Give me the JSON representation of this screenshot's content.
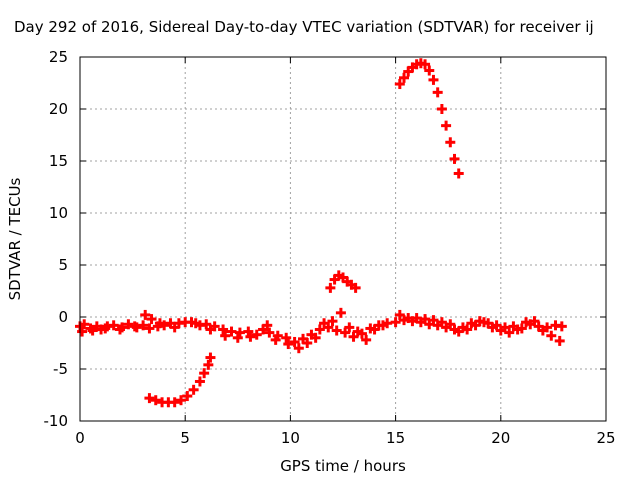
{
  "chart_data": {
    "type": "scatter",
    "title": "Day 292 of 2016, Sidereal Day-to-day VTEC variation (SDTVAR) for receiver ij",
    "xlabel": "GPS time / hours",
    "ylabel": "SDTVAR / TECUs",
    "xlim": [
      0,
      25
    ],
    "ylim": [
      -10,
      25
    ],
    "x_ticks": [
      0,
      5,
      10,
      15,
      20,
      25
    ],
    "y_ticks": [
      -10,
      -5,
      0,
      5,
      10,
      15,
      20,
      25
    ],
    "grid": true,
    "marker": "plus",
    "colors": {
      "series": "#ff0000",
      "grid": "#a0a0a0",
      "axis": "#000000"
    },
    "series": [
      {
        "values": [
          {
            "x": 0.0,
            "y": -0.9
          },
          {
            "x": 0.2,
            "y": -0.7
          },
          {
            "x": 0.5,
            "y": -1.1
          },
          {
            "x": 0.8,
            "y": -0.9
          },
          {
            "x": 1.0,
            "y": -1.2
          },
          {
            "x": 1.3,
            "y": -0.9
          },
          {
            "x": 1.6,
            "y": -0.8
          },
          {
            "x": 2.0,
            "y": -1.0
          },
          {
            "x": 2.3,
            "y": -0.7
          },
          {
            "x": 2.6,
            "y": -0.9
          },
          {
            "x": 3.0,
            "y": -0.8
          },
          {
            "x": 3.3,
            "y": -1.1
          },
          {
            "x": 3.7,
            "y": -0.9
          },
          {
            "x": 4.0,
            "y": -0.8
          },
          {
            "x": 4.3,
            "y": -0.6
          },
          {
            "x": 4.7,
            "y": -0.6
          },
          {
            "x": 5.0,
            "y": -0.5
          },
          {
            "x": 5.3,
            "y": -0.5
          },
          {
            "x": 5.7,
            "y": -0.8
          },
          {
            "x": 6.0,
            "y": -0.7
          },
          {
            "x": 6.4,
            "y": -0.9
          },
          {
            "x": 6.8,
            "y": -1.2
          },
          {
            "x": 7.2,
            "y": -1.4
          },
          {
            "x": 7.6,
            "y": -1.5
          },
          {
            "x": 8.0,
            "y": -1.4
          },
          {
            "x": 8.4,
            "y": -1.7
          },
          {
            "x": 8.7,
            "y": -1.2
          },
          {
            "x": 9.0,
            "y": -1.5
          },
          {
            "x": 9.4,
            "y": -1.8
          },
          {
            "x": 9.8,
            "y": -2.0
          },
          {
            "x": 10.2,
            "y": -2.4
          },
          {
            "x": 10.6,
            "y": -2.1
          },
          {
            "x": 11.0,
            "y": -1.7
          },
          {
            "x": 11.4,
            "y": -1.2
          },
          {
            "x": 11.8,
            "y": -1.0
          },
          {
            "x": 12.2,
            "y": -1.3
          },
          {
            "x": 12.6,
            "y": -1.5
          },
          {
            "x": 13.0,
            "y": -1.9
          },
          {
            "x": 13.4,
            "y": -1.6
          },
          {
            "x": 13.8,
            "y": -1.1
          },
          {
            "x": 14.2,
            "y": -0.8
          },
          {
            "x": 14.6,
            "y": -0.6
          },
          {
            "x": 15.0,
            "y": -0.5
          },
          {
            "x": 15.4,
            "y": -0.3
          },
          {
            "x": 15.8,
            "y": -0.4
          },
          {
            "x": 16.2,
            "y": -0.5
          },
          {
            "x": 16.6,
            "y": -0.7
          },
          {
            "x": 17.0,
            "y": -0.8
          },
          {
            "x": 17.4,
            "y": -1.0
          },
          {
            "x": 17.8,
            "y": -1.2
          },
          {
            "x": 18.2,
            "y": -1.0
          },
          {
            "x": 18.6,
            "y": -0.6
          },
          {
            "x": 19.0,
            "y": -0.4
          },
          {
            "x": 19.4,
            "y": -0.6
          },
          {
            "x": 19.8,
            "y": -0.8
          },
          {
            "x": 20.2,
            "y": -1.0
          },
          {
            "x": 20.6,
            "y": -0.9
          },
          {
            "x": 21.0,
            "y": -1.1
          },
          {
            "x": 21.4,
            "y": -0.7
          },
          {
            "x": 21.8,
            "y": -0.9
          },
          {
            "x": 22.2,
            "y": -1.0
          },
          {
            "x": 22.6,
            "y": -0.8
          },
          {
            "x": 22.9,
            "y": -0.9
          },
          {
            "x": 0.1,
            "y": -1.4
          },
          {
            "x": 0.6,
            "y": -1.3
          },
          {
            "x": 1.2,
            "y": -1.1
          },
          {
            "x": 1.9,
            "y": -1.2
          },
          {
            "x": 2.7,
            "y": -1.0
          },
          {
            "x": 3.1,
            "y": 0.2
          },
          {
            "x": 3.4,
            "y": -0.2
          },
          {
            "x": 3.8,
            "y": -0.6
          },
          {
            "x": 4.5,
            "y": -1.0
          },
          {
            "x": 5.5,
            "y": -0.6
          },
          {
            "x": 6.2,
            "y": -1.2
          },
          {
            "x": 6.9,
            "y": -1.8
          },
          {
            "x": 7.5,
            "y": -2.0
          },
          {
            "x": 8.1,
            "y": -1.9
          },
          {
            "x": 8.9,
            "y": -0.8
          },
          {
            "x": 9.3,
            "y": -2.2
          },
          {
            "x": 9.9,
            "y": -2.6
          },
          {
            "x": 10.4,
            "y": -3.0
          },
          {
            "x": 10.8,
            "y": -2.5
          },
          {
            "x": 11.2,
            "y": -2.0
          },
          {
            "x": 11.6,
            "y": -0.6
          },
          {
            "x": 12.0,
            "y": -0.4
          },
          {
            "x": 12.4,
            "y": 0.4
          },
          {
            "x": 12.8,
            "y": -1.0
          },
          {
            "x": 13.2,
            "y": -1.4
          },
          {
            "x": 13.6,
            "y": -2.2
          },
          {
            "x": 14.0,
            "y": -1.2
          },
          {
            "x": 14.4,
            "y": -0.8
          },
          {
            "x": 15.2,
            "y": 0.2
          },
          {
            "x": 15.6,
            "y": -0.1
          },
          {
            "x": 16.0,
            "y": -0.1
          },
          {
            "x": 16.4,
            "y": -0.2
          },
          {
            "x": 16.8,
            "y": -0.3
          },
          {
            "x": 17.2,
            "y": -0.5
          },
          {
            "x": 17.6,
            "y": -0.7
          },
          {
            "x": 18.0,
            "y": -1.4
          },
          {
            "x": 18.4,
            "y": -1.2
          },
          {
            "x": 18.8,
            "y": -0.8
          },
          {
            "x": 19.2,
            "y": -0.5
          },
          {
            "x": 19.6,
            "y": -1.0
          },
          {
            "x": 20.0,
            "y": -1.3
          },
          {
            "x": 20.4,
            "y": -1.5
          },
          {
            "x": 20.8,
            "y": -1.2
          },
          {
            "x": 21.2,
            "y": -0.5
          },
          {
            "x": 21.6,
            "y": -0.4
          },
          {
            "x": 22.0,
            "y": -1.3
          },
          {
            "x": 22.4,
            "y": -1.8
          },
          {
            "x": 22.8,
            "y": -2.3
          },
          {
            "x": 3.3,
            "y": -7.8
          },
          {
            "x": 3.6,
            "y": -8.0
          },
          {
            "x": 3.9,
            "y": -8.2
          },
          {
            "x": 4.2,
            "y": -8.2
          },
          {
            "x": 4.5,
            "y": -8.2
          },
          {
            "x": 4.8,
            "y": -8.0
          },
          {
            "x": 5.1,
            "y": -7.6
          },
          {
            "x": 5.4,
            "y": -7.0
          },
          {
            "x": 5.7,
            "y": -6.2
          },
          {
            "x": 5.9,
            "y": -5.4
          },
          {
            "x": 6.1,
            "y": -4.6
          },
          {
            "x": 6.2,
            "y": -3.9
          },
          {
            "x": 11.9,
            "y": 2.8
          },
          {
            "x": 12.1,
            "y": 3.6
          },
          {
            "x": 12.3,
            "y": 4.0
          },
          {
            "x": 12.5,
            "y": 3.8
          },
          {
            "x": 12.7,
            "y": 3.4
          },
          {
            "x": 12.9,
            "y": 3.1
          },
          {
            "x": 13.1,
            "y": 2.8
          },
          {
            "x": 15.2,
            "y": 22.4
          },
          {
            "x": 15.4,
            "y": 23.0
          },
          {
            "x": 15.6,
            "y": 23.6
          },
          {
            "x": 15.8,
            "y": 24.0
          },
          {
            "x": 16.0,
            "y": 24.3
          },
          {
            "x": 16.2,
            "y": 24.4
          },
          {
            "x": 16.4,
            "y": 24.3
          },
          {
            "x": 16.6,
            "y": 23.7
          },
          {
            "x": 16.8,
            "y": 22.8
          },
          {
            "x": 17.0,
            "y": 21.6
          },
          {
            "x": 17.2,
            "y": 20.0
          },
          {
            "x": 17.4,
            "y": 18.4
          },
          {
            "x": 17.6,
            "y": 16.8
          },
          {
            "x": 17.8,
            "y": 15.2
          },
          {
            "x": 18.0,
            "y": 13.8
          }
        ]
      }
    ]
  }
}
